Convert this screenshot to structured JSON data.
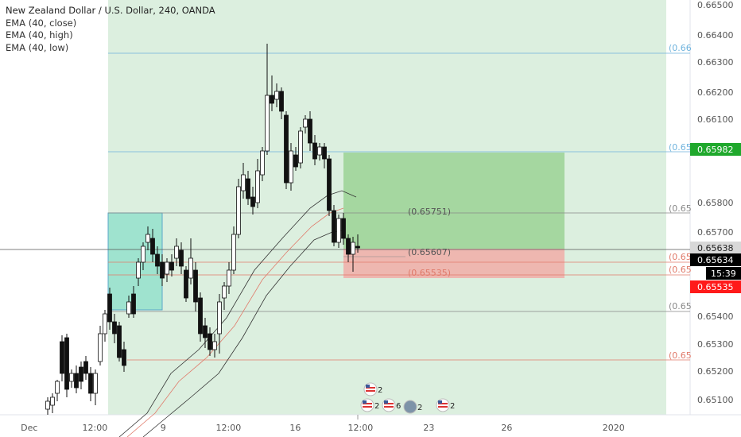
{
  "legend": {
    "title": "New Zealand Dollar / U.S. Dollar, 240, OANDA",
    "indicators": [
      "EMA (40, close)",
      "EMA (40, high)",
      "EMA (40, low)"
    ]
  },
  "colors": {
    "background_zone": "#dcefdf",
    "highlight_box": "#9fe3cf",
    "profit_zone": "#a5d7a0",
    "loss_zone": "#eeb7b0",
    "bull_candle": "#ffffff",
    "bear_candle": "#111111",
    "blue_line": "#6fb3dd",
    "red_line": "#e07a6a",
    "grey_line": "#888888",
    "badge_green": "#1fa82c",
    "badge_red": "#ff1a1a",
    "badge_black": "#000000"
  },
  "price_axis": {
    "ticks": [
      "0.66500",
      "0.66400",
      "0.66300",
      "0.66200",
      "0.66100",
      "0.65800",
      "0.65700",
      "0.65400",
      "0.65300",
      "0.65200",
      "0.65100"
    ]
  },
  "time_axis": {
    "labels": [
      "Dec",
      "12:00",
      "9",
      "12:00",
      "16",
      "12:00",
      "23",
      "26",
      "2020"
    ]
  },
  "line_labels": [
    {
      "text": "(0.66",
      "color": "#6fb3dd"
    },
    {
      "text": "(0.65",
      "color": "#6fb3dd"
    },
    {
      "text": "(0.65",
      "color": "#888888"
    },
    {
      "text": "(0.65",
      "color": "#e07a6a"
    },
    {
      "text": "(0.65",
      "color": "#e07a6a"
    },
    {
      "text": "(0.65",
      "color": "#888888"
    },
    {
      "text": "(0.65",
      "color": "#e07a6a"
    }
  ],
  "position": {
    "target_label": "(0.65751)",
    "entry_label": "(0.65607)",
    "stop_label": "(0.65535)"
  },
  "price_badges": {
    "upper_green": "0.65982",
    "grey_price": "0.65638",
    "current_price": "0.65634",
    "countdown": "15:39",
    "red_price": "0.65535"
  },
  "events": [
    {
      "icon": "us-flag-icon",
      "count": "2"
    },
    {
      "icon": "us-flag-icon",
      "count": "2"
    },
    {
      "icon": "us-flag-icon",
      "count": "6"
    },
    {
      "icon": "globe-icon",
      "count": "2"
    },
    {
      "icon": "us-flag-icon",
      "count": "2"
    }
  ],
  "chart_data": {
    "type": "candlestick",
    "title": "New Zealand Dollar / U.S. Dollar, 240, OANDA",
    "ylim": [
      0.6505,
      0.665
    ],
    "time_range": [
      "Dec",
      "2020"
    ],
    "series": [
      {
        "name": "EMA (40, close)"
      },
      {
        "name": "EMA (40, high)"
      },
      {
        "name": "EMA (40, low)"
      }
    ],
    "position": {
      "target": 0.65751,
      "entry": 0.65607,
      "stop": 0.65535,
      "take_profit_zone_top": 0.65982
    },
    "horizontal_levels": [
      0.6633,
      0.65982,
      0.65751,
      0.65638,
      0.6561,
      0.65535,
      0.6542,
      0.65245
    ],
    "grid": false
  }
}
